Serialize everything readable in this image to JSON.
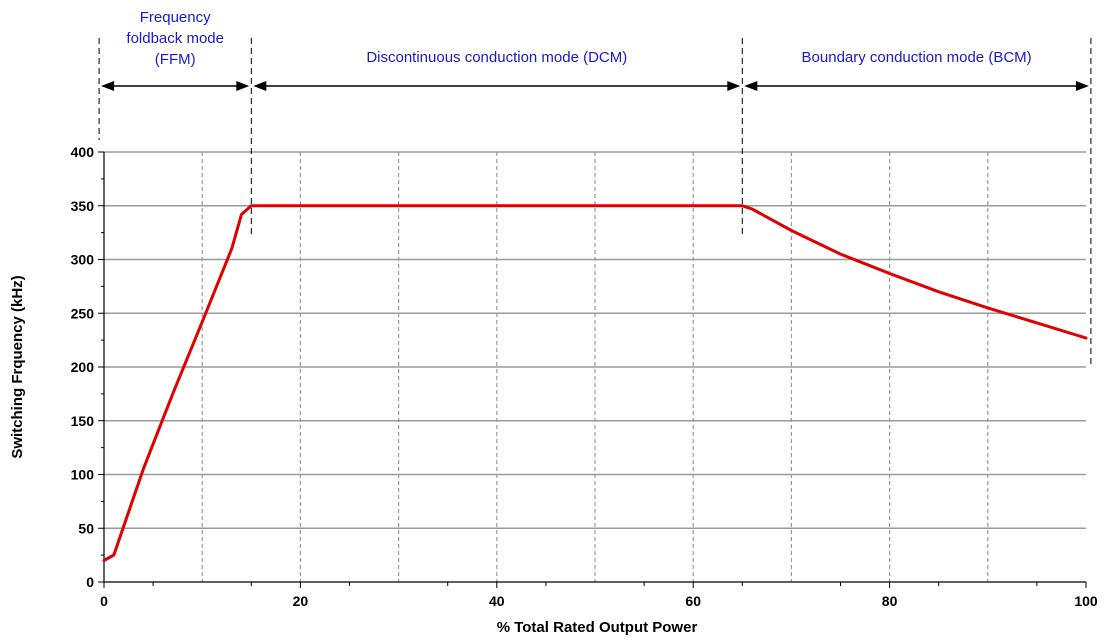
{
  "chart_data": {
    "type": "line",
    "title": "",
    "xlabel": "% Total Rated Output Power",
    "ylabel": "Switching Frquency (kHz)",
    "xlim": [
      0,
      100
    ],
    "ylim": [
      0,
      400
    ],
    "x_ticks": [
      "0",
      "20",
      "40",
      "60",
      "80",
      "100"
    ],
    "y_ticks": [
      "0",
      "50",
      "100",
      "150",
      "200",
      "250",
      "300",
      "350",
      "400"
    ],
    "grid": true,
    "line_color": "#e00000",
    "series": [
      {
        "x": [
          0,
          1,
          4,
          7,
          10,
          13,
          14,
          15,
          20,
          30,
          40,
          50,
          60,
          64,
          65,
          66,
          70,
          75,
          80,
          85,
          90,
          95,
          100
        ],
        "y": [
          20,
          25,
          105,
          175,
          242,
          310,
          342,
          350,
          350,
          350,
          350,
          350,
          350,
          350,
          350,
          347,
          327,
          305,
          287,
          270,
          255,
          241,
          227
        ]
      }
    ],
    "regions": [
      {
        "label_lines": [
          "Frequency",
          "foldback mode",
          "(FFM)"
        ],
        "x_start": -0.5,
        "x_end": 15
      },
      {
        "label_lines": [
          "Discontinuous conduction mode (DCM)"
        ],
        "x_start": 15,
        "x_end": 65
      },
      {
        "label_lines": [
          "Boundary conduction mode (BCM)"
        ],
        "x_start": 65,
        "x_end": 100.5
      }
    ]
  }
}
